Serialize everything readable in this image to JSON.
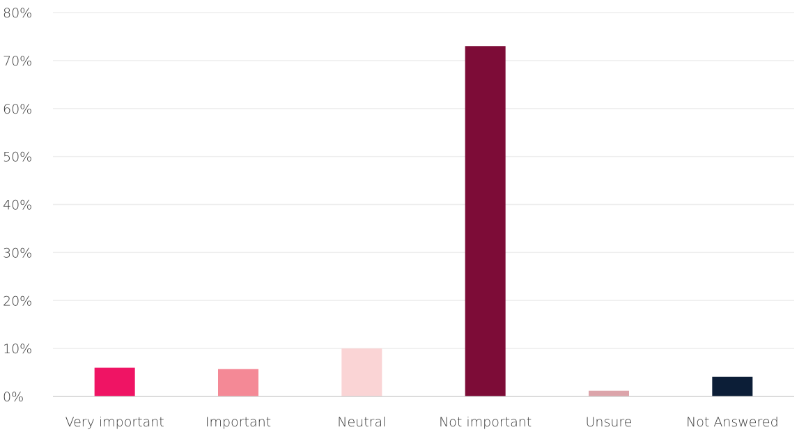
{
  "chart_data": {
    "type": "bar",
    "categories": [
      "Very important",
      "Important",
      "Neutral",
      "Not important",
      "Unsure",
      "Not Answered"
    ],
    "values": [
      6,
      5.7,
      10,
      73,
      1.2,
      4.1
    ],
    "colors": [
      "#ef1464",
      "#f48996",
      "#fad4d5",
      "#7d0c37",
      "#dca4aa",
      "#0c1e37"
    ],
    "ylim": [
      0,
      80
    ],
    "yticks": [
      0,
      10,
      20,
      30,
      40,
      50,
      60,
      70,
      80
    ],
    "ytick_labels": [
      "0%",
      "10%",
      "20%",
      "30%",
      "40%",
      "50%",
      "60%",
      "70%",
      "80%"
    ],
    "grid": true,
    "title": "",
    "xlabel": "",
    "ylabel": ""
  }
}
